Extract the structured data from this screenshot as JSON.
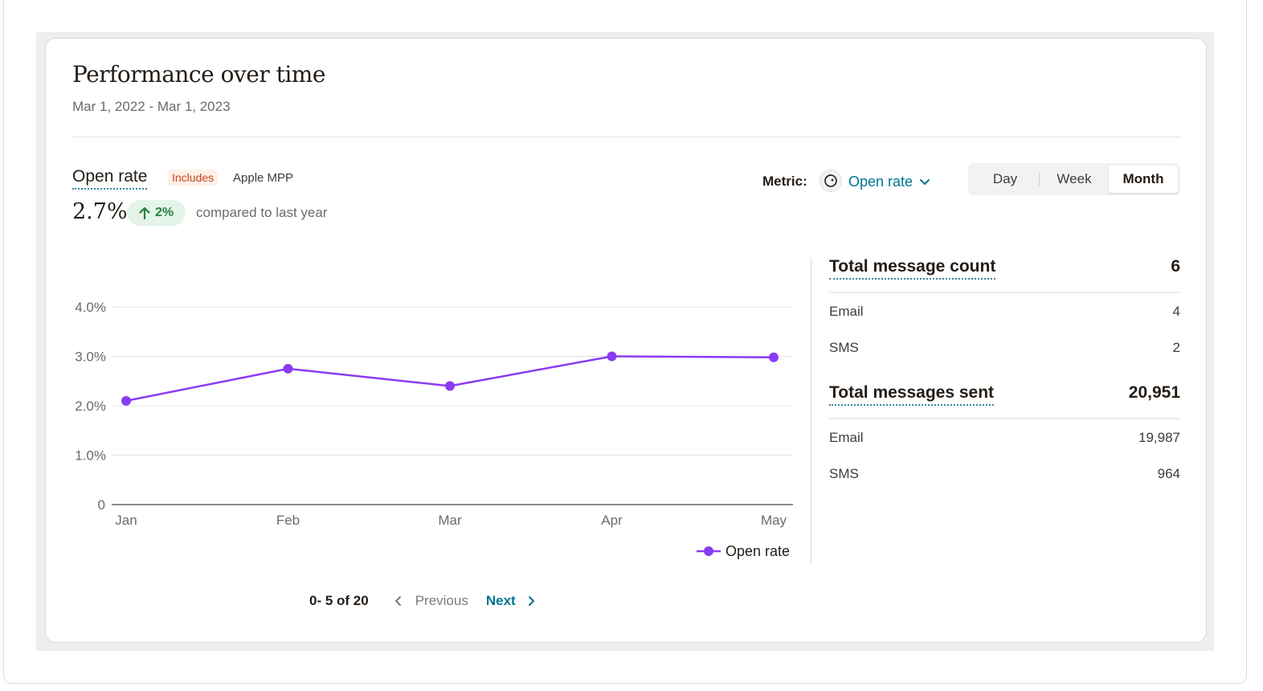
{
  "card": {
    "title": "Performance over time",
    "date_range": "Mar 1, 2022 - Mar 1, 2023"
  },
  "metric": {
    "name": "Open rate",
    "includes_badge": "Includes",
    "includes_detail": "Apple MPP",
    "value": "2.7%",
    "change": "2%",
    "change_direction": "up",
    "compare_text": "compared to last year"
  },
  "metric_selector": {
    "label": "Metric:",
    "selected": "Open rate",
    "icon": "mailchimp-freddie-icon"
  },
  "period_toggle": {
    "options": [
      "Day",
      "Week",
      "Month"
    ],
    "selected": "Month"
  },
  "colors": {
    "series": "#8b3cf2",
    "link": "#00748f",
    "positive": "#23813f",
    "badge": "#c7431c"
  },
  "chart_data": {
    "type": "line",
    "categories": [
      "Jan",
      "Feb",
      "Mar",
      "Apr",
      "May"
    ],
    "series": [
      {
        "name": "Open rate",
        "values": [
          2.1,
          2.75,
          2.4,
          3.0,
          2.98
        ]
      }
    ],
    "ylim": [
      0,
      4.0
    ],
    "yticks": [
      0,
      1.0,
      2.0,
      3.0,
      4.0
    ],
    "ytick_labels": [
      "0",
      "1.0%",
      "2.0%",
      "3.0%",
      "4.0%"
    ],
    "grid": true,
    "legend": "bottom-right"
  },
  "summary": {
    "message_count": {
      "label": "Total message count",
      "total": "6",
      "rows": [
        {
          "label": "Email",
          "value": "4"
        },
        {
          "label": "SMS",
          "value": "2"
        }
      ]
    },
    "messages_sent": {
      "label": "Total messages sent",
      "total": "20,951",
      "rows": [
        {
          "label": "Email",
          "value": "19,987"
        },
        {
          "label": "SMS",
          "value": "964"
        }
      ]
    }
  },
  "pagination": {
    "range": "0- 5 of 20",
    "previous": "Previous",
    "next": "Next"
  }
}
